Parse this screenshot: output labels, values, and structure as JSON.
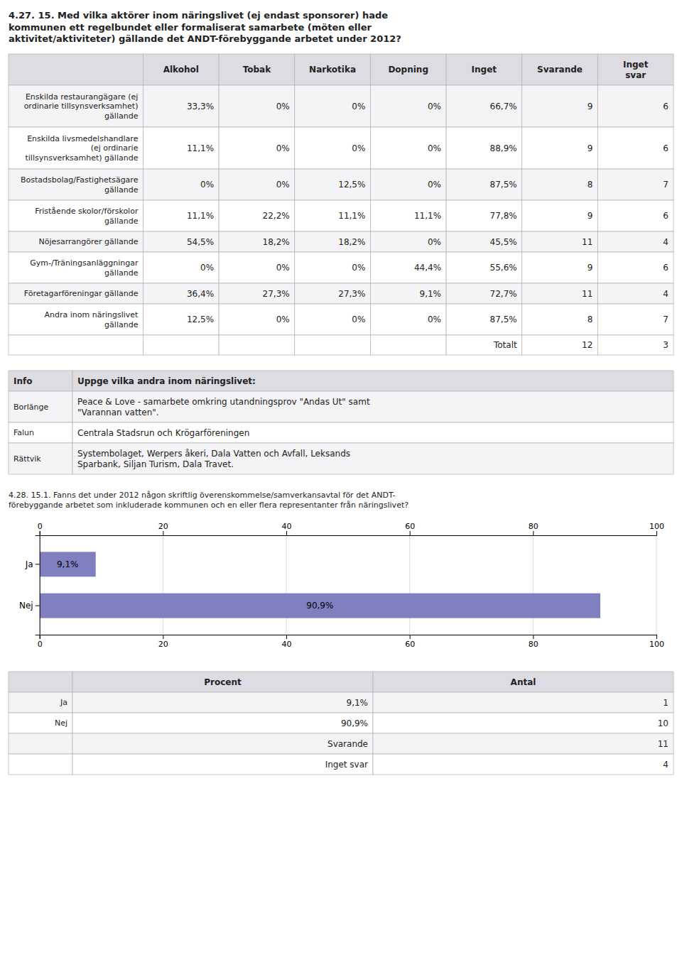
{
  "chart_data": [
    {
      "type": "table",
      "title": "4.27. 15. Med vilka aktörer inom näringslivet (ej endast sponsorer) hade\nkommunen ett regelbundet eller formaliserat samarbete (möten eller\naktivitet/aktiviteter) gällande det ANDT-förebyggande arbetet under 2012?",
      "columns": [
        "Alkohol",
        "Tobak",
        "Narkotika",
        "Dopning",
        "Inget",
        "Svarande",
        "Inget\nsvar"
      ],
      "rows": [
        {
          "label": "Enskilda restaurangägare (ej\nordinarie tillsynsverksamhet)\ngällande",
          "values": [
            "33,3%",
            "0%",
            "0%",
            "0%",
            "66,7%",
            "9",
            "6"
          ]
        },
        {
          "label": "Enskilda livsmedelshandlare\n(ej ordinarie\ntillsynsverksamhet) gällande",
          "values": [
            "11,1%",
            "0%",
            "0%",
            "0%",
            "88,9%",
            "9",
            "6"
          ]
        },
        {
          "label": "Bostadsbolag/Fastighetsägare\ngällande",
          "values": [
            "0%",
            "0%",
            "12,5%",
            "0%",
            "87,5%",
            "8",
            "7"
          ]
        },
        {
          "label": "Fristående skolor/förskolor\ngällande",
          "values": [
            "11,1%",
            "22,2%",
            "11,1%",
            "11,1%",
            "77,8%",
            "9",
            "6"
          ]
        },
        {
          "label": "Nöjesarrangörer gällande",
          "values": [
            "54,5%",
            "18,2%",
            "18,2%",
            "0%",
            "45,5%",
            "11",
            "4"
          ]
        },
        {
          "label": "Gym-/Träningsanläggningar\ngällande",
          "values": [
            "0%",
            "0%",
            "0%",
            "44,4%",
            "55,6%",
            "9",
            "6"
          ]
        },
        {
          "label": "Företagarföreningar gällande",
          "values": [
            "36,4%",
            "27,3%",
            "27,3%",
            "9,1%",
            "72,7%",
            "11",
            "4"
          ]
        },
        {
          "label": "Andra inom näringslivet\ngällande",
          "values": [
            "12,5%",
            "0%",
            "0%",
            "0%",
            "87,5%",
            "8",
            "7"
          ]
        }
      ],
      "total": {
        "label": "Totalt",
        "values": [
          "12",
          "3"
        ]
      }
    },
    {
      "type": "table",
      "columns": [
        "Info",
        "Uppge vilka andra inom näringslivet:"
      ],
      "rows": [
        {
          "label": "Borlänge",
          "values": [
            "Peace & Love - samarbete omkring utandningsprov \"Andas Ut\" samt\n\"Varannan vatten\"."
          ]
        },
        {
          "label": "Falun",
          "values": [
            "Centrala Stadsrun och Krögarföreningen"
          ]
        },
        {
          "label": "Rättvik",
          "values": [
            "Systembolaget, Werpers åkeri, Dala Vatten och Avfall, Leksands\nSparbank, Siljan Turism, Dala Travet."
          ]
        }
      ]
    },
    {
      "type": "bar",
      "orientation": "horizontal",
      "title": "4.28. 15.1. Fanns det under 2012 någon skriftlig överenskommelse/samverkansavtal för det ANDT-\nförebyggande arbetet som inkluderade kommunen och en eller flera representanter från näringslivet?",
      "categories": [
        "Ja",
        "Nej"
      ],
      "values": [
        9.1,
        90.9
      ],
      "value_labels": [
        "9,1%",
        "90,9%"
      ],
      "data_labels": true,
      "color": "#8080c0",
      "xlim": [
        0,
        100
      ],
      "xticks": [
        0,
        20,
        40,
        60,
        80,
        100
      ],
      "grid": true
    },
    {
      "type": "table",
      "columns": [
        "Procent",
        "Antal"
      ],
      "rows": [
        {
          "label": "Ja",
          "values": [
            "9,1%",
            "1"
          ]
        },
        {
          "label": "Nej",
          "values": [
            "90,9%",
            "10"
          ]
        },
        {
          "label": null,
          "values": [
            "Svarande",
            "11"
          ]
        },
        {
          "label": null,
          "values": [
            "Inget svar",
            "4"
          ]
        }
      ]
    }
  ]
}
